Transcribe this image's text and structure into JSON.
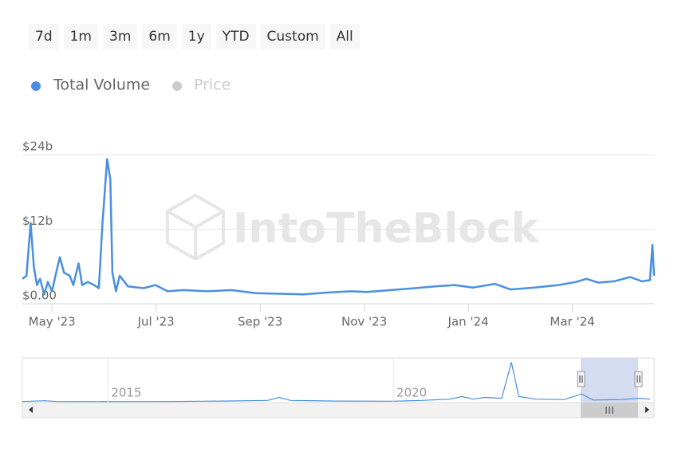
{
  "chart_data": {
    "type": "line",
    "range_buttons": [
      "7d",
      "1m",
      "3m",
      "6m",
      "1y",
      "YTD",
      "Custom",
      "All"
    ],
    "watermark": "IntoTheBlock",
    "x": [
      -0.57,
      -0.49,
      -0.41,
      -0.35,
      -0.29,
      -0.23,
      -0.15,
      -0.08,
      0,
      0.08,
      0.15,
      0.23,
      0.34,
      0.41,
      0.51,
      0.58,
      0.69,
      0.81,
      0.9,
      0.97,
      1.06,
      1.12,
      1.16,
      1.23,
      1.3,
      1.46,
      1.76,
      1.99,
      2.22,
      2.53,
      2.99,
      3.45,
      3.91,
      4.37,
      4.83,
      5.29,
      5.75,
      6.05,
      6.51,
      6.97,
      7.36,
      7.74,
      8.09,
      8.51,
      8.81,
      9.27,
      9.73,
      10.07,
      10.27,
      10.5,
      10.8,
      11.11,
      11.34,
      11.49,
      11.54,
      11.57
    ],
    "series": [
      {
        "name": "Total Volume",
        "color": "#4a8fe0",
        "values": [
          4.0,
          4.5,
          13,
          6,
          3,
          4,
          1.5,
          3.5,
          2,
          5,
          7.5,
          5,
          4.5,
          3,
          6.5,
          3,
          3.5,
          3,
          2.5,
          13,
          23.3,
          20,
          5,
          2,
          4.5,
          2.8,
          2.5,
          3,
          2,
          2.2,
          2.0,
          2.2,
          1.7,
          1.6,
          1.5,
          1.8,
          2.0,
          1.9,
          2.2,
          2.5,
          2.8,
          3.0,
          2.6,
          3.2,
          2.3,
          2.6,
          3.0,
          3.5,
          4.0,
          3.4,
          3.6,
          4.3,
          3.6,
          3.8,
          9.5,
          4.5
        ]
      }
    ],
    "hidden_series": [
      {
        "name": "Price",
        "color": "#cccccc"
      }
    ],
    "xlim": [
      -0.57,
      11.57
    ],
    "xticks": [
      {
        "value": 0,
        "label": "May '23"
      },
      {
        "value": 2,
        "label": "Jul '23"
      },
      {
        "value": 4,
        "label": "Sep '23"
      },
      {
        "value": 6,
        "label": "Nov '23"
      },
      {
        "value": 8,
        "label": "Jan '24"
      },
      {
        "value": 10,
        "label": "Mar '24"
      }
    ],
    "ylim": [
      0,
      24
    ],
    "yticks": [
      {
        "value": 0,
        "label": "$0.00"
      },
      {
        "value": 12,
        "label": "$12b"
      },
      {
        "value": 24,
        "label": "$24b"
      }
    ],
    "grid": true,
    "navigator": {
      "x": [
        2013.5,
        2013.9,
        2014.1,
        2015,
        2016,
        2017,
        2017.8,
        2018.0,
        2018.2,
        2019,
        2020,
        2020.5,
        2021.0,
        2021.2,
        2021.4,
        2021.6,
        2021.9,
        2022.07,
        2022.2,
        2022.5,
        2023,
        2023.3,
        2023.5,
        2024,
        2024.3,
        2024.5
      ],
      "values": [
        0.3,
        1.2,
        0.3,
        0.2,
        0.3,
        0.8,
        1.5,
        5,
        1.5,
        0.8,
        0.6,
        1.5,
        3,
        6,
        3,
        5,
        4,
        45,
        6,
        3,
        2.5,
        9,
        2,
        2.5,
        4,
        3
      ],
      "xlim": [
        2013.5,
        2024.57
      ],
      "ylim": [
        0,
        48
      ],
      "xticks": [
        2015,
        2020
      ]
    }
  }
}
